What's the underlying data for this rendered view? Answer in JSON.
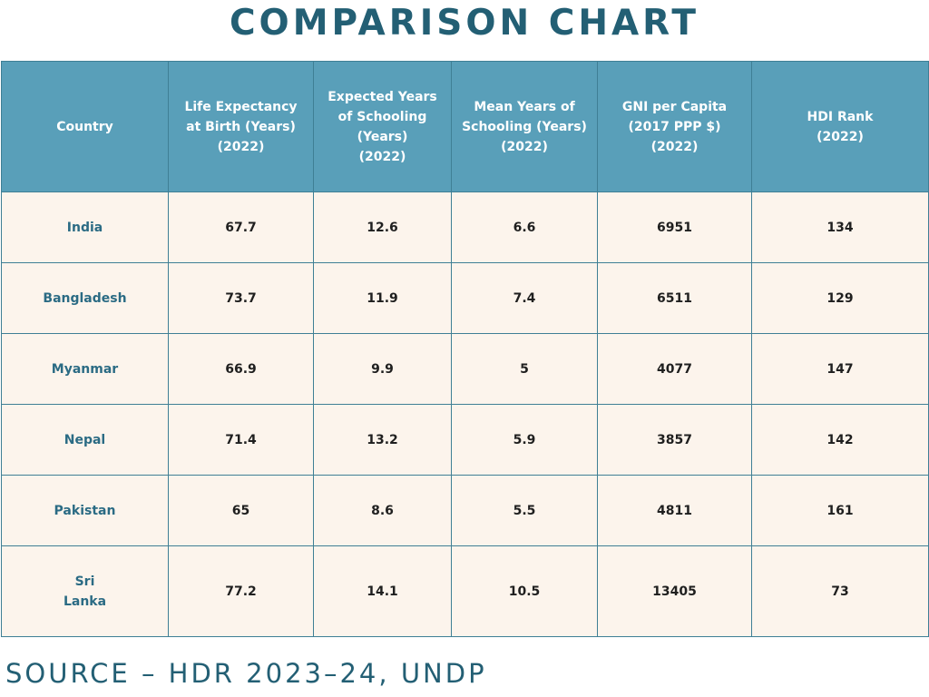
{
  "title": "COMPARISON CHART",
  "source": "SOURCE – HDR 2023–24, UNDP",
  "colors": {
    "title": "#235f74",
    "header_bg": "#599fb9",
    "row_bg": "#fcf4ec",
    "country_text": "#2b6b84"
  },
  "chart_data": {
    "type": "table",
    "columns": [
      "Country",
      "Life Expectancy\nat Birth (Years)\n(2022)",
      "Expected Years\nof Schooling\n(Years)\n(2022)",
      "Mean Years of\nSchooling (Years)\n(2022)",
      "GNI per Capita\n(2017 PPP $)\n(2022)",
      "HDI Rank\n(2022)"
    ],
    "rows": [
      [
        "India",
        "67.7",
        "12.6",
        "6.6",
        "6951",
        "134"
      ],
      [
        "Bangladesh",
        "73.7",
        "11.9",
        "7.4",
        "6511",
        "129"
      ],
      [
        "Myanmar",
        "66.9",
        "9.9",
        "5",
        "4077",
        "147"
      ],
      [
        "Nepal",
        "71.4",
        "13.2",
        "5.9",
        "3857",
        "142"
      ],
      [
        "Pakistan",
        "65",
        "8.6",
        "5.5",
        "4811",
        "161"
      ],
      [
        "Sri\nLanka",
        "77.2",
        "14.1",
        "10.5",
        "13405",
        "73"
      ]
    ]
  }
}
